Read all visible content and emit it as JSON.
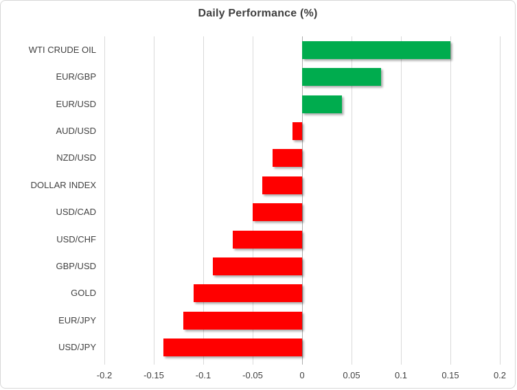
{
  "window": {
    "background": "#FFFFFF",
    "border_color": "#D7D7D7"
  },
  "chart_data": {
    "type": "bar",
    "orientation": "horizontal",
    "title": "Daily Performance (%)",
    "categories": [
      "WTI CRUDE OIL",
      "EUR/GBP",
      "EUR/USD",
      "AUD/USD",
      "NZD/USD",
      "DOLLAR INDEX",
      "USD/CAD",
      "USD/CHF",
      "GBP/USD",
      "GOLD",
      "EUR/JPY",
      "USD/JPY"
    ],
    "values": [
      0.15,
      0.08,
      0.04,
      -0.01,
      -0.03,
      -0.04,
      -0.05,
      -0.07,
      -0.09,
      -0.11,
      -0.12,
      -0.14
    ],
    "xlabel": "",
    "ylabel": "",
    "xlim": [
      -0.2,
      0.2
    ],
    "xticks": [
      -0.2,
      -0.15,
      -0.1,
      -0.05,
      0,
      0.05,
      0.1,
      0.15,
      0.2
    ],
    "xtick_labels": [
      "-0.2",
      "-0.15",
      "-0.1",
      "-0.05",
      "0",
      "0.05",
      "0.1",
      "0.15",
      "0.2"
    ],
    "grid": true,
    "legend": "none",
    "colors": {
      "positive_bar": "#00AC4E",
      "negative_bar": "#FF0000",
      "gridline": "#D9D9D9",
      "zero_line": "#ACACAC",
      "title_text": "#3F3F3F",
      "label_text": "#404040"
    }
  }
}
